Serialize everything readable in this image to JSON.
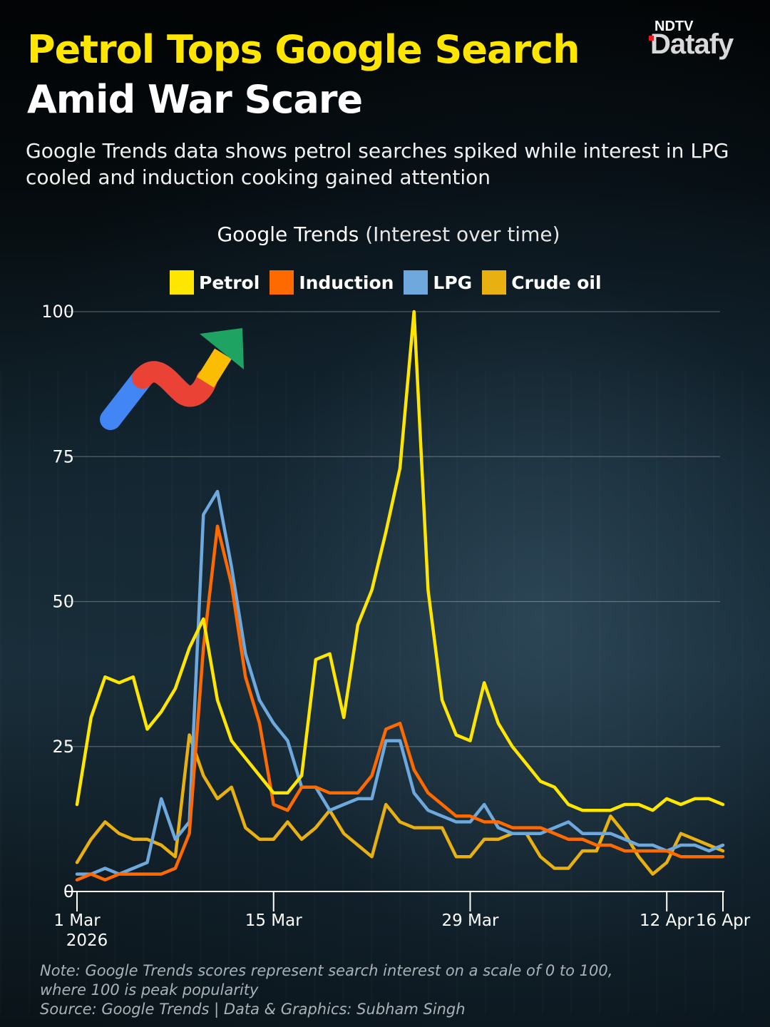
{
  "header": {
    "title_line1": "Petrol Tops Google Search",
    "title_line2": "Amid War Scare",
    "subtitle": "Google Trends data shows petrol searches spiked while interest in LPG cooled and induction cooking gained attention",
    "logo_top": "NDTV",
    "logo_main": "Datafy"
  },
  "chart_data": {
    "type": "line",
    "title": "Google Trends",
    "title_suffix": "(Interest over time)",
    "xlabel": "",
    "ylabel": "",
    "ylim": [
      0,
      100
    ],
    "yticks": [
      "0",
      "25",
      "50",
      "75",
      "100"
    ],
    "xlim": [
      1,
      47
    ],
    "xticks": [
      {
        "x": 1,
        "label": "1 Mar",
        "label2": "2026"
      },
      {
        "x": 15,
        "label": "15 Mar",
        "label2": ""
      },
      {
        "x": 29,
        "label": "29 Mar",
        "label2": ""
      },
      {
        "x": 43,
        "label": "12 Apr",
        "label2": ""
      },
      {
        "x": 47,
        "label": "16 Apr",
        "label2": ""
      }
    ],
    "legend_position": "top",
    "grid": true,
    "x": [
      1,
      2,
      3,
      4,
      5,
      6,
      7,
      8,
      9,
      10,
      11,
      12,
      13,
      14,
      15,
      16,
      17,
      18,
      19,
      20,
      21,
      22,
      23,
      24,
      25,
      26,
      27,
      28,
      29,
      30,
      31,
      32,
      33,
      34,
      35,
      36,
      37,
      38,
      39,
      40,
      41,
      42,
      43,
      44,
      45,
      46,
      47
    ],
    "series": [
      {
        "name": "Petrol",
        "color": "#ffe600",
        "values": [
          15,
          30,
          37,
          36,
          37,
          28,
          31,
          35,
          42,
          47,
          33,
          26,
          23,
          20,
          17,
          17,
          20,
          40,
          41,
          30,
          46,
          52,
          62,
          73,
          100,
          52,
          33,
          27,
          26,
          36,
          29,
          25,
          22,
          19,
          18,
          15,
          14,
          14,
          14,
          15,
          15,
          14,
          16,
          15,
          16,
          16,
          15
        ]
      },
      {
        "name": "Induction",
        "color": "#ff6a00",
        "values": [
          2,
          3,
          2,
          3,
          3,
          3,
          3,
          4,
          10,
          42,
          63,
          53,
          37,
          29,
          15,
          14,
          18,
          18,
          17,
          17,
          17,
          20,
          28,
          29,
          21,
          17,
          15,
          13,
          13,
          12,
          12,
          11,
          11,
          11,
          10,
          9,
          9,
          8,
          8,
          7,
          7,
          7,
          7,
          6,
          6,
          6,
          6
        ]
      },
      {
        "name": "LPG",
        "color": "#6fa8dc",
        "values": [
          3,
          3,
          4,
          3,
          4,
          5,
          16,
          9,
          12,
          65,
          69,
          56,
          41,
          33,
          29,
          26,
          18,
          18,
          14,
          15,
          16,
          16,
          26,
          26,
          17,
          14,
          13,
          12,
          12,
          15,
          11,
          10,
          10,
          10,
          11,
          12,
          10,
          10,
          10,
          9,
          8,
          8,
          7,
          8,
          8,
          7,
          8
        ]
      },
      {
        "name": "Crude oil",
        "color": "#e8b010",
        "values": [
          5,
          9,
          12,
          10,
          9,
          9,
          8,
          6,
          27,
          20,
          16,
          18,
          11,
          9,
          9,
          12,
          9,
          11,
          14,
          10,
          8,
          6,
          15,
          12,
          11,
          11,
          11,
          6,
          6,
          9,
          9,
          10,
          10,
          6,
          4,
          4,
          7,
          7,
          13,
          10,
          6,
          3,
          5,
          10,
          9,
          8,
          7
        ]
      }
    ]
  },
  "footer": {
    "note_line1": "Note: Google Trends scores represent search interest on a scale of 0 to 100,",
    "note_line2": "where 100 is peak popularity",
    "source": "Source: Google Trends | Data & Graphics: Subham Singh"
  }
}
